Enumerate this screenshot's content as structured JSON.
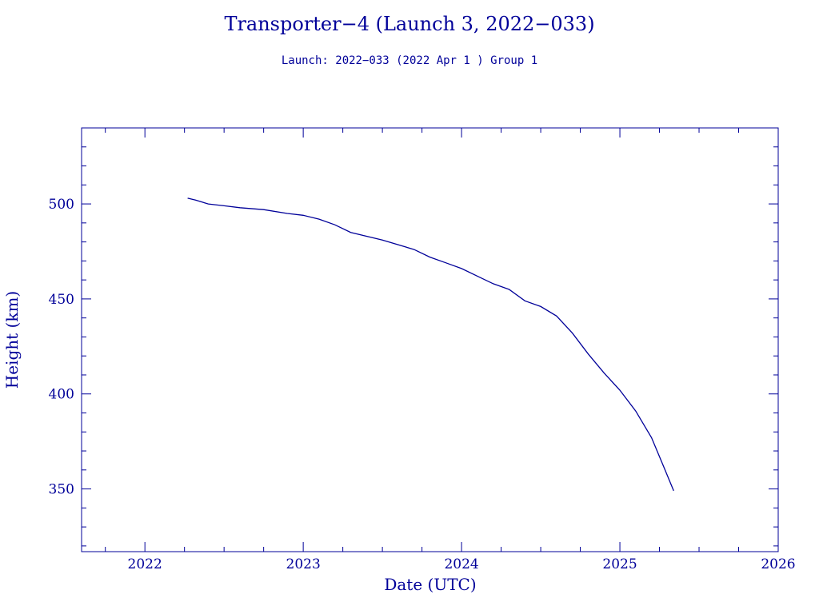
{
  "colors": {
    "ink": "#000099",
    "background": "#ffffff"
  },
  "chart_data": {
    "type": "line",
    "title": "Transporter−4 (Launch 3, 2022−033)",
    "subtitle": "Launch: 2022−033  (2022 Apr  1 )  Group 1",
    "xlabel": "Date (UTC)",
    "ylabel": "Height (km)",
    "xlim": [
      2021.6,
      2026.0
    ],
    "ylim": [
      317,
      540
    ],
    "xticks": [
      2022,
      2023,
      2024,
      2025,
      2026
    ],
    "yticks": [
      350,
      400,
      450,
      500
    ],
    "grid": false,
    "series": [
      {
        "x": [
          2022.27,
          2022.32,
          2022.4,
          2022.5,
          2022.6,
          2022.75,
          2022.9,
          2023.0,
          2023.1,
          2023.2,
          2023.3,
          2023.5,
          2023.7,
          2023.8,
          2023.9,
          2024.0,
          2024.1,
          2024.2,
          2024.3,
          2024.4,
          2024.5,
          2024.6,
          2024.7,
          2024.8,
          2024.9,
          2025.0,
          2025.1,
          2025.2,
          2025.28,
          2025.34
        ],
        "y": [
          503,
          502,
          500,
          499,
          498,
          497,
          495,
          494,
          492,
          489,
          485,
          481,
          476,
          472,
          469,
          466,
          462,
          458,
          455,
          449,
          446,
          441,
          432,
          421,
          411,
          402,
          391,
          377,
          361,
          349
        ]
      }
    ]
  }
}
